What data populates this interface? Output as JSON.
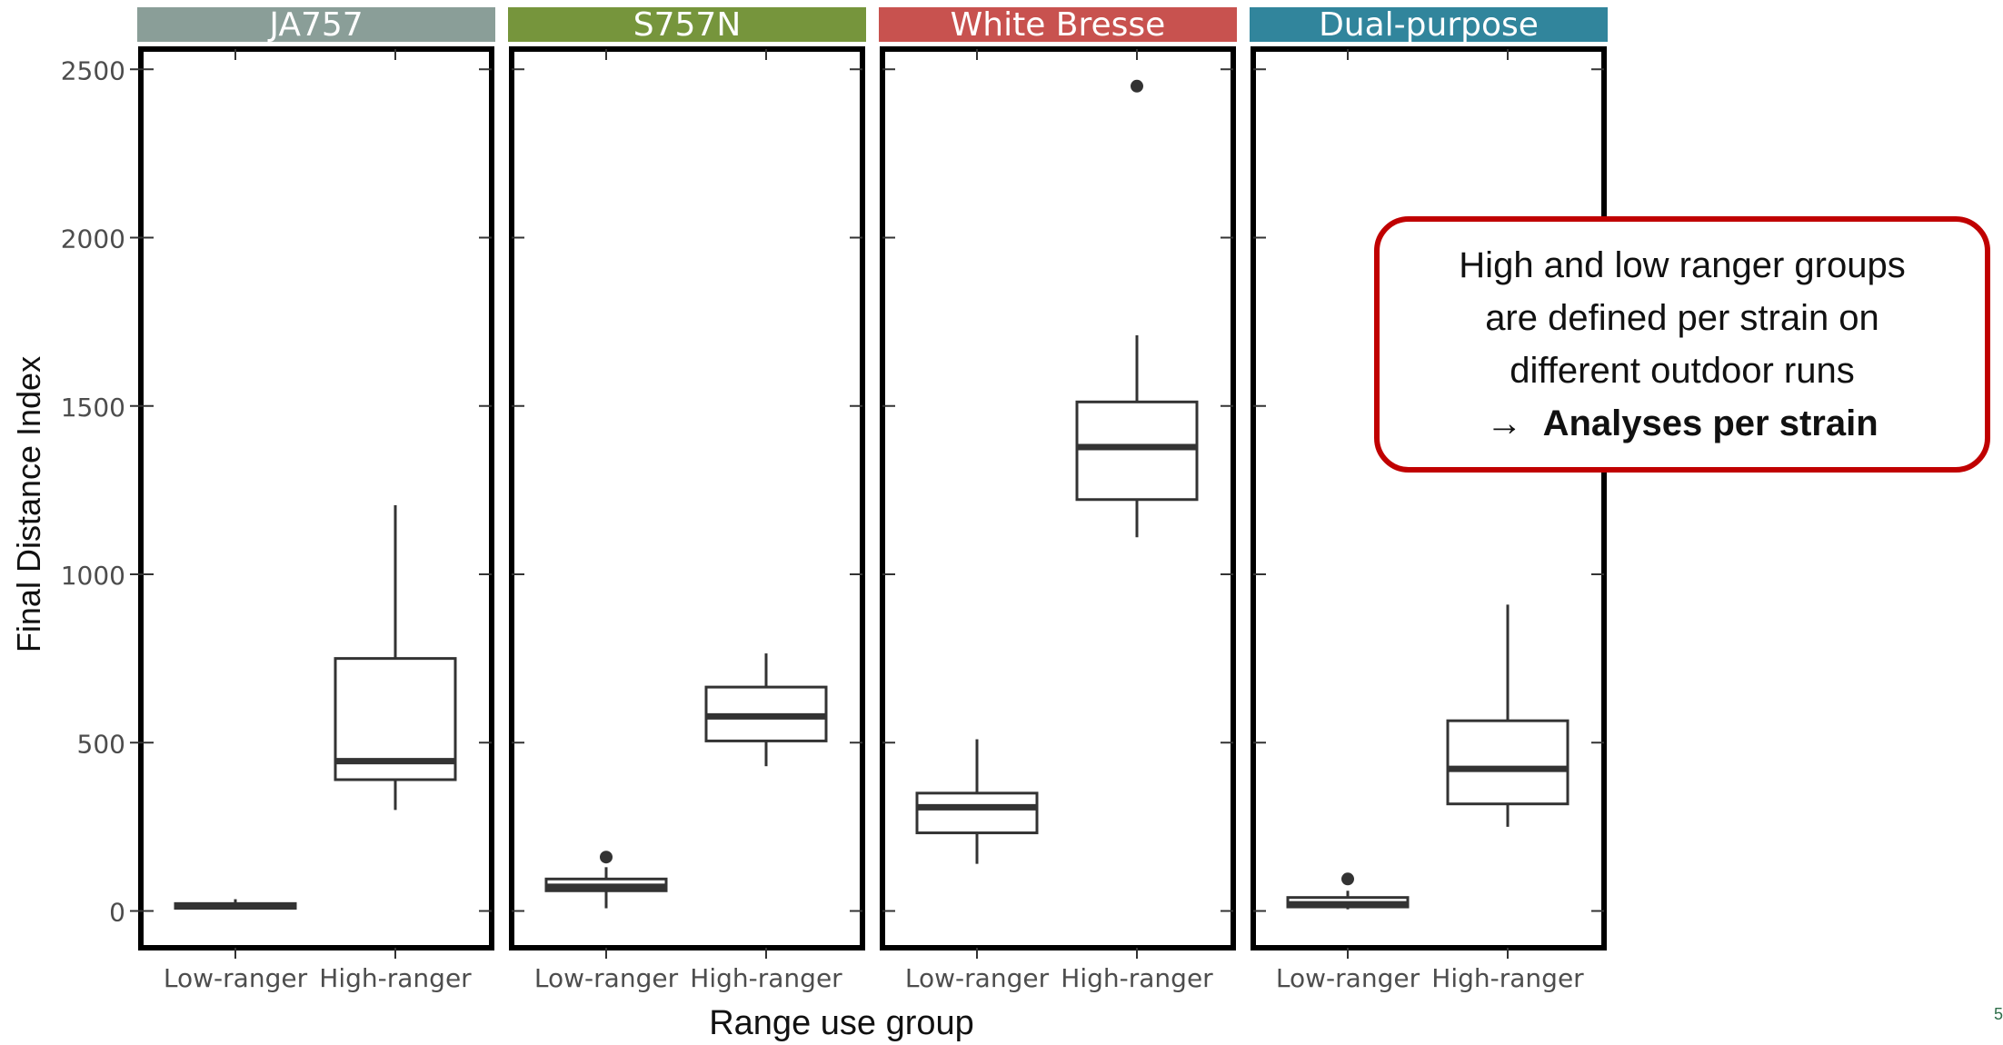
{
  "chart_data": {
    "type": "boxplot",
    "xlabel": "Range use group",
    "ylabel": "Final Distance Index",
    "ylim": [
      -80,
      2550
    ],
    "yticks": [
      0,
      500,
      1000,
      1500,
      2000,
      2500
    ],
    "categories": [
      "Low-ranger",
      "High-ranger"
    ],
    "grid": false,
    "facets": [
      {
        "strain": "JA757",
        "color": "#8a9e98",
        "boxes": [
          {
            "group": "Low-ranger",
            "min": 5,
            "q1": 8,
            "median": 15,
            "q3": 22,
            "max": 35,
            "outliers": []
          },
          {
            "group": "High-ranger",
            "min": 300,
            "q1": 390,
            "median": 445,
            "q3": 750,
            "max": 1205,
            "outliers": []
          }
        ]
      },
      {
        "strain": "S757N",
        "color": "#76953c",
        "boxes": [
          {
            "group": "Low-ranger",
            "min": 8,
            "q1": 60,
            "median": 72,
            "q3": 95,
            "max": 130,
            "outliers": [
              160
            ]
          },
          {
            "group": "High-ranger",
            "min": 430,
            "q1": 505,
            "median": 578,
            "q3": 665,
            "max": 765,
            "outliers": []
          }
        ]
      },
      {
        "strain": "White Bresse",
        "color": "#c8524f",
        "boxes": [
          {
            "group": "Low-ranger",
            "min": 140,
            "q1": 232,
            "median": 308,
            "q3": 350,
            "max": 510,
            "outliers": []
          },
          {
            "group": "High-ranger",
            "min": 1110,
            "q1": 1222,
            "median": 1378,
            "q3": 1512,
            "max": 1710,
            "outliers": [
              2450
            ]
          }
        ]
      },
      {
        "strain": "Dual-purpose",
        "color": "#31859c",
        "boxes": [
          {
            "group": "Low-ranger",
            "min": 5,
            "q1": 12,
            "median": 20,
            "q3": 40,
            "max": 60,
            "outliers": [
              95
            ]
          },
          {
            "group": "High-ranger",
            "min": 250,
            "q1": 318,
            "median": 422,
            "q3": 565,
            "max": 910,
            "outliers": []
          }
        ]
      }
    ]
  },
  "callout": {
    "line1": "High and low ranger groups",
    "line2": "are defined per strain on",
    "line3": "different outdoor runs",
    "arrow": "→",
    "line4": "Analyses per strain",
    "border_color": "#c00000"
  },
  "slide_number": "5"
}
